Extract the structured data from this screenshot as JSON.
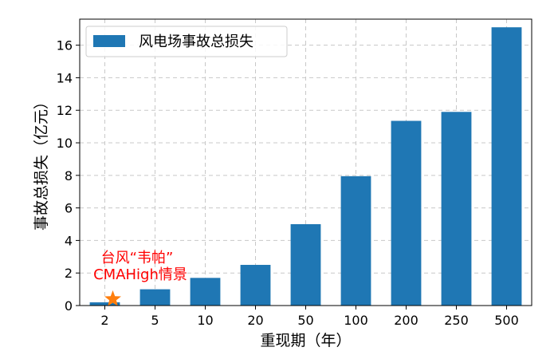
{
  "chart_data": {
    "type": "bar",
    "categories": [
      "2",
      "5",
      "10",
      "20",
      "50",
      "100",
      "200",
      "250",
      "500"
    ],
    "series": [
      {
        "name": "风电场事故总损失",
        "values": [
          0.2,
          1.0,
          1.7,
          2.5,
          5.0,
          7.95,
          11.35,
          11.9,
          17.1
        ],
        "color": "#1f77b4"
      }
    ],
    "xlabel": "重现期（年）",
    "ylabel": "事故总损失（亿元）",
    "ylim": [
      0,
      17.6
    ],
    "yticks": [
      0,
      2,
      4,
      6,
      8,
      10,
      12,
      14,
      16
    ],
    "grid": true,
    "legend_position": "top-left",
    "annotation": {
      "lines": [
        "台风“韦帕”",
        "CMAHigh情景"
      ],
      "color": "#ff0000",
      "marker": "star",
      "marker_color": "#ff7f0e",
      "marker_x": "2",
      "marker_y": 0.2
    }
  }
}
